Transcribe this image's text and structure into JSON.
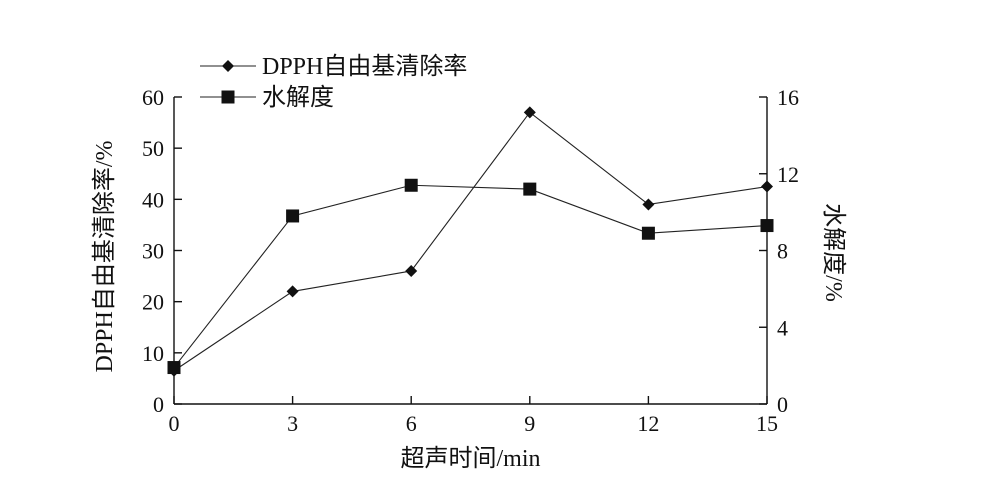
{
  "chart_data": {
    "type": "line",
    "xlabel": "超声时间/min",
    "ylabel_left": "DPPH自由基清除率/%",
    "ylabel_right": "水解度/%",
    "x": [
      0,
      3,
      6,
      9,
      12,
      15
    ],
    "xlim": [
      0,
      15
    ],
    "x_ticks": [
      "0",
      "3",
      "6",
      "9",
      "12",
      "15"
    ],
    "ylim_left": [
      0,
      60
    ],
    "y_ticks_left": [
      "0",
      "10",
      "20",
      "30",
      "40",
      "50",
      "60"
    ],
    "ylim_right": [
      0,
      16
    ],
    "y_ticks_right": [
      "0",
      "4",
      "8",
      "12",
      "16"
    ],
    "legend_position": "top-left",
    "grid": false,
    "series": [
      {
        "name": "DPPH自由基清除率",
        "axis": "left",
        "marker": "diamond",
        "color": "#111111",
        "values": [
          6.5,
          22,
          26,
          57,
          39,
          42.5
        ]
      },
      {
        "name": "水解度",
        "axis": "right",
        "marker": "square",
        "color": "#111111",
        "values": [
          1.9,
          9.8,
          11.4,
          11.2,
          8.9,
          9.3
        ]
      }
    ]
  }
}
